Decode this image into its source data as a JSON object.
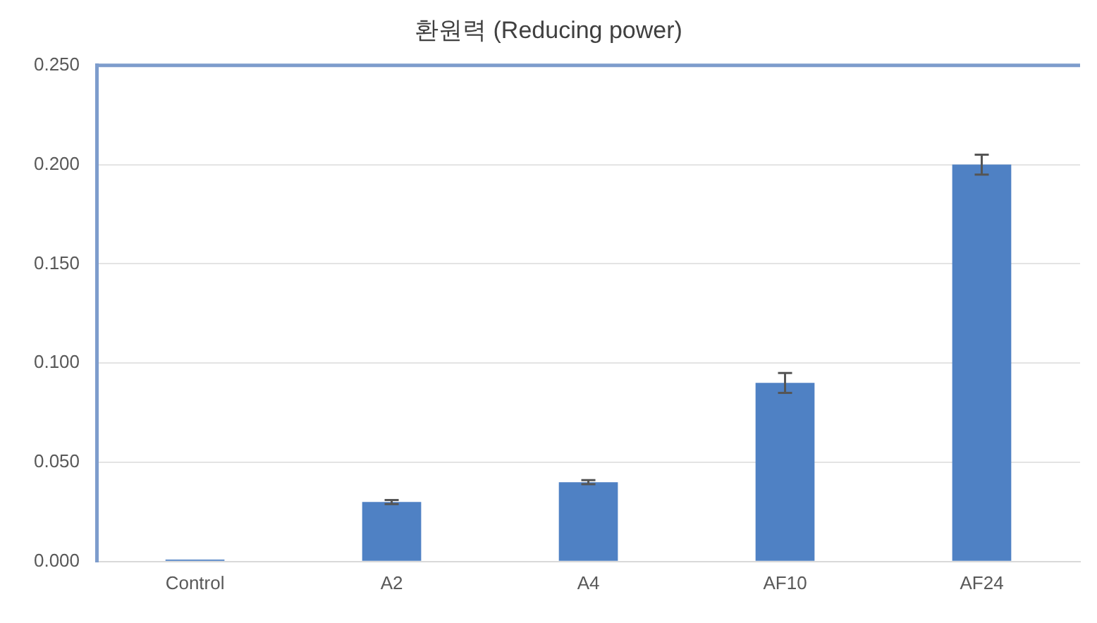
{
  "chart_data": {
    "type": "bar",
    "title": "환원력 (Reducing power)",
    "categories": [
      "Control",
      "A2",
      "A4",
      "AF10",
      "AF24"
    ],
    "values": [
      0.001,
      0.03,
      0.04,
      0.09,
      0.2
    ],
    "errors": [
      null,
      0.001,
      0.001,
      0.005,
      0.005
    ],
    "color": "#4f81c4",
    "ylim": [
      0,
      0.25
    ],
    "yticks": [
      {
        "value": 0,
        "label": "0.000"
      },
      {
        "value": 0.05,
        "label": "0.050"
      },
      {
        "value": 0.1,
        "label": "0.100"
      },
      {
        "value": 0.15,
        "label": "0.150"
      },
      {
        "value": 0.2,
        "label": "0.200"
      },
      {
        "value": 0.25,
        "label": "0.250"
      }
    ],
    "grid": "y",
    "legend": false
  }
}
